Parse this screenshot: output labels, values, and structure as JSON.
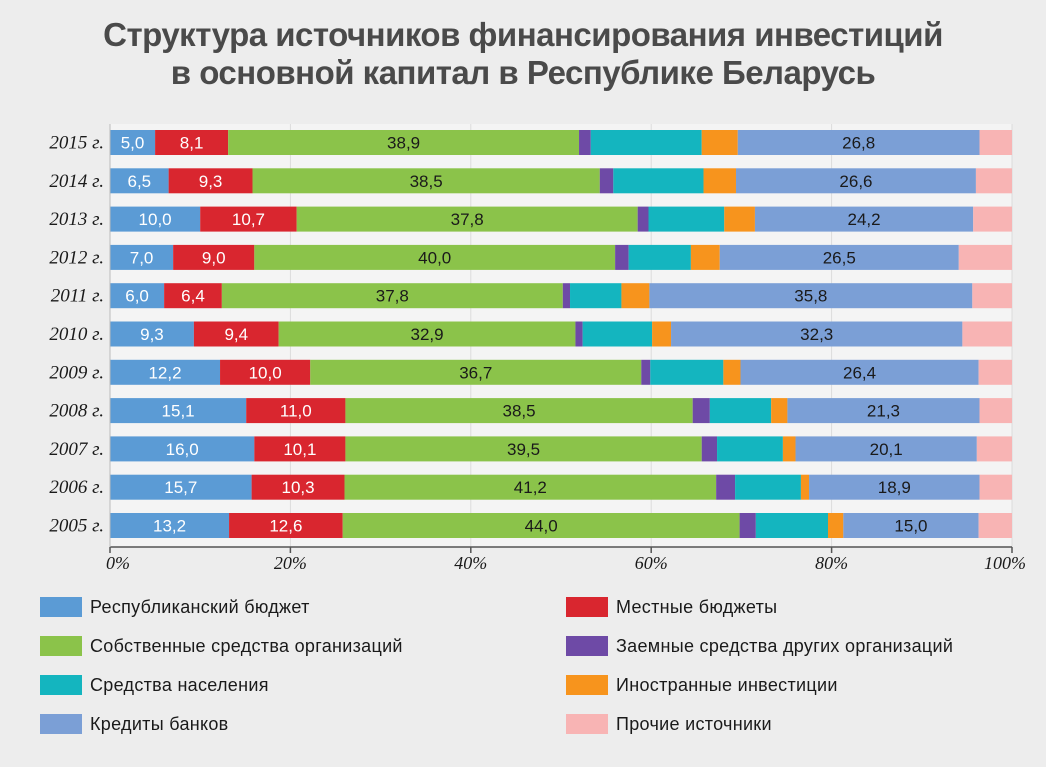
{
  "chart_data": {
    "type": "bar",
    "orientation": "horizontal",
    "stacked": true,
    "title_lines": [
      "Структура источников финансирования инвестиций",
      "в основной капитал в Республике Беларусь"
    ],
    "categories": [
      "2015 г.",
      "2014 г.",
      "2013 г.",
      "2012 г.",
      "2011 г.",
      "2010 г.",
      "2009 г.",
      "2008 г.",
      "2007 г.",
      "2006 г.",
      "2005 г."
    ],
    "xlim": [
      0,
      100
    ],
    "x_ticks": [
      "0%",
      "20%",
      "40%",
      "60%",
      "80%",
      "100%"
    ],
    "x_tick_values": [
      0,
      20,
      40,
      60,
      80,
      100
    ],
    "legend_position": "bottom",
    "series": [
      {
        "name": "Республиканский бюджет",
        "color": "#5b9bd5",
        "label_color": "#ffffff",
        "values": [
          5.0,
          6.5,
          10.0,
          7.0,
          6.0,
          9.3,
          12.2,
          15.1,
          16.0,
          15.7,
          13.2
        ],
        "labels": [
          "5,0",
          "6,5",
          "10,0",
          "7,0",
          "6,0",
          "9,3",
          "12,2",
          "15,1",
          "16,0",
          "15,7",
          "13,2"
        ]
      },
      {
        "name": "Местные бюджеты",
        "color": "#d9262f",
        "label_color": "#ffffff",
        "values": [
          8.1,
          9.3,
          10.7,
          9.0,
          6.4,
          9.4,
          10.0,
          11.0,
          10.1,
          10.3,
          12.6
        ],
        "labels": [
          "8,1",
          "9,3",
          "10,7",
          "9,0",
          "6,4",
          "9,4",
          "10,0",
          "11,0",
          "10,1",
          "10,3",
          "12,6"
        ]
      },
      {
        "name": "Собственные средства организаций",
        "color": "#8bc34a",
        "label_color": "#1a1a1a",
        "values": [
          38.9,
          38.5,
          37.8,
          40.0,
          37.8,
          32.9,
          36.7,
          38.5,
          39.5,
          41.2,
          44.0
        ],
        "labels": [
          "38,9",
          "38,5",
          "37,8",
          "40,0",
          "37,8",
          "32,9",
          "36,7",
          "38,5",
          "39,5",
          "41,2",
          "44,0"
        ]
      },
      {
        "name": "Заемные средства других организаций",
        "color": "#6e4aa6",
        "label_color": "#ffffff",
        "values": [
          1.3,
          1.5,
          1.2,
          1.5,
          0.8,
          0.8,
          1.0,
          1.9,
          1.7,
          2.1,
          1.8
        ],
        "labels": [
          "",
          "",
          "",
          "",
          "",
          "",
          "",
          "",
          "",
          "",
          ""
        ]
      },
      {
        "name": "Средства населения",
        "color": "#14b5bf",
        "label_color": "#1a1a1a",
        "values": [
          12.3,
          10.0,
          8.4,
          6.9,
          5.7,
          7.7,
          8.1,
          6.8,
          7.3,
          7.3,
          8.0
        ],
        "labels": [
          "",
          "",
          "",
          "",
          "",
          "",
          "",
          "",
          "",
          "",
          ""
        ]
      },
      {
        "name": "Иностранные инвестиции",
        "color": "#f7941d",
        "label_color": "#1a1a1a",
        "values": [
          4.0,
          3.6,
          3.4,
          3.2,
          3.1,
          2.1,
          1.9,
          1.8,
          1.4,
          0.9,
          1.7
        ],
        "labels": [
          "",
          "",
          "",
          "",
          "",
          "",
          "",
          "",
          "",
          "",
          ""
        ]
      },
      {
        "name": "Кредиты банков",
        "color": "#7b9fd6",
        "label_color": "#1a1a1a",
        "values": [
          26.8,
          26.6,
          24.2,
          26.5,
          35.8,
          32.3,
          26.4,
          21.3,
          20.1,
          18.9,
          15.0
        ],
        "labels": [
          "26,8",
          "26,6",
          "24,2",
          "26,5",
          "35,8",
          "32,3",
          "26,4",
          "21,3",
          "20,1",
          "18,9",
          "15,0"
        ]
      },
      {
        "name": "Прочие источники",
        "color": "#f8b4b4",
        "label_color": "#1a1a1a",
        "values": [
          3.6,
          4.0,
          4.3,
          5.9,
          4.4,
          5.5,
          3.7,
          3.6,
          3.9,
          3.6,
          3.7
        ],
        "labels": [
          "",
          "",
          "",
          "",
          "",
          "",
          "",
          "",
          "",
          "",
          ""
        ]
      }
    ]
  }
}
